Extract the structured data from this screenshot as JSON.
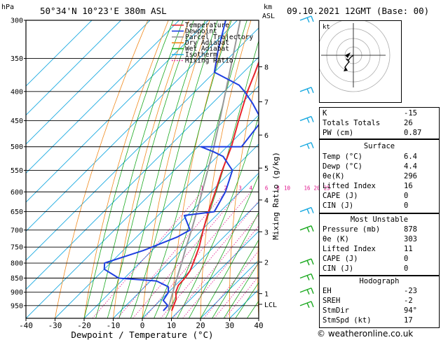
{
  "header": {
    "location": "50°34'N  10°23'E  380m  ASL",
    "pressure_unit": "hPa",
    "height_unit_km": "km",
    "height_unit_asl": "ASL",
    "datetime": "09.10.2021  12GMT  (Base: 00)"
  },
  "legend": [
    {
      "label": "Temperature",
      "color": "#e8232a"
    },
    {
      "label": "Dewpoint",
      "color": "#1f3fe0"
    },
    {
      "label": "Parcel Trajectory",
      "color": "#999999"
    },
    {
      "label": "Dry Adiabat",
      "color": "#f08a1e"
    },
    {
      "label": "Wet Adiabat",
      "color": "#19a81e"
    },
    {
      "label": "Isotherm",
      "color": "#19a9e0"
    },
    {
      "label": "Mixing Ratio",
      "color": "#e0138c"
    }
  ],
  "chart_data": {
    "type": "skew-t",
    "xlabel": "Dewpoint / Temperature (°C)",
    "ylabel_right": "Mixing Ratio (g/kg)",
    "x_ticks": [
      -40,
      -30,
      -20,
      -10,
      0,
      10,
      20,
      30,
      40
    ],
    "pressure_levels": [
      300,
      350,
      400,
      450,
      500,
      550,
      600,
      650,
      700,
      750,
      800,
      850,
      900,
      950
    ],
    "pressure_range": [
      300,
      1000
    ],
    "temp_range_at_bottom": [
      -40,
      40
    ],
    "height_km_labels": [
      {
        "label": "8",
        "p": 362
      },
      {
        "label": "7",
        "p": 417
      },
      {
        "label": "6",
        "p": 477
      },
      {
        "label": "5",
        "p": 545
      },
      {
        "label": "4",
        "p": 620
      },
      {
        "label": "3",
        "p": 705
      },
      {
        "label": "2",
        "p": 797
      },
      {
        "label": "1",
        "p": 905
      },
      {
        "label": "LCL",
        "p": 945
      }
    ],
    "mixing_ratio_labels": [
      "1",
      "2",
      "3",
      "4",
      "6",
      "8",
      "10",
      "16",
      "20",
      "25"
    ],
    "mixing_ratio_values": [
      1,
      2,
      3,
      4,
      6,
      8,
      10,
      16,
      20,
      25
    ],
    "temperature": [
      {
        "p": 970,
        "t": 7.5
      },
      {
        "p": 950,
        "t": 6.4
      },
      {
        "p": 925,
        "t": 5.0
      },
      {
        "p": 900,
        "t": 2.5
      },
      {
        "p": 875,
        "t": 1.0
      },
      {
        "p": 850,
        "t": 0.8
      },
      {
        "p": 825,
        "t": 0.0
      },
      {
        "p": 800,
        "t": -1.5
      },
      {
        "p": 750,
        "t": -5.0
      },
      {
        "p": 700,
        "t": -9.5
      },
      {
        "p": 650,
        "t": -14.0
      },
      {
        "p": 600,
        "t": -18.5
      },
      {
        "p": 550,
        "t": -23.5
      },
      {
        "p": 500,
        "t": -28.5
      },
      {
        "p": 450,
        "t": -35.0
      },
      {
        "p": 400,
        "t": -42.0
      },
      {
        "p": 370,
        "t": -46.0
      },
      {
        "p": 350,
        "t": -49.0
      },
      {
        "p": 300,
        "t": -56.0
      }
    ],
    "dewpoint": [
      {
        "p": 970,
        "t": 4.6
      },
      {
        "p": 950,
        "t": 4.4
      },
      {
        "p": 930,
        "t": 1.0
      },
      {
        "p": 900,
        "t": 0.0
      },
      {
        "p": 880,
        "t": -2.0
      },
      {
        "p": 860,
        "t": -8.0
      },
      {
        "p": 850,
        "t": -22.0
      },
      {
        "p": 820,
        "t": -30.0
      },
      {
        "p": 800,
        "t": -32.0
      },
      {
        "p": 760,
        "t": -23.0
      },
      {
        "p": 720,
        "t": -16.0
      },
      {
        "p": 700,
        "t": -14.0
      },
      {
        "p": 660,
        "t": -21.0
      },
      {
        "p": 650,
        "t": -12.0
      },
      {
        "p": 600,
        "t": -15.0
      },
      {
        "p": 550,
        "t": -20.0
      },
      {
        "p": 520,
        "t": -28.0
      },
      {
        "p": 510,
        "t": -33.0
      },
      {
        "p": 500,
        "t": -39.0
      },
      {
        "p": 500,
        "t": -25.0
      },
      {
        "p": 450,
        "t": -27.0
      },
      {
        "p": 420,
        "t": -36.0
      },
      {
        "p": 400,
        "t": -43.0
      },
      {
        "p": 390,
        "t": -47.0
      },
      {
        "p": 370,
        "t": -60.0
      },
      {
        "p": 340,
        "t": -66.0
      },
      {
        "p": 300,
        "t": -74.0
      }
    ],
    "parcel": [
      {
        "p": 970,
        "t": 6.5
      },
      {
        "p": 950,
        "t": 4.8
      },
      {
        "p": 900,
        "t": 1.5
      },
      {
        "p": 850,
        "t": -2.0
      },
      {
        "p": 800,
        "t": -5.5
      },
      {
        "p": 750,
        "t": -9.5
      },
      {
        "p": 700,
        "t": -13.5
      },
      {
        "p": 650,
        "t": -18.0
      },
      {
        "p": 600,
        "t": -23.0
      },
      {
        "p": 550,
        "t": -28.5
      },
      {
        "p": 500,
        "t": -34.5
      },
      {
        "p": 450,
        "t": -41.5
      },
      {
        "p": 400,
        "t": -49.5
      },
      {
        "p": 350,
        "t": -58.5
      },
      {
        "p": 300,
        "t": -69.0
      }
    ],
    "wind_barb_pressures": [
      300,
      400,
      450,
      500,
      650,
      700,
      800,
      850,
      900,
      950
    ]
  },
  "indices": {
    "k": {
      "label": "K",
      "value": "-15"
    },
    "tt": {
      "label": "Totals Totals",
      "value": "26"
    },
    "pw": {
      "label": "PW (cm)",
      "value": "0.87"
    }
  },
  "surface": {
    "title": "Surface",
    "rows": [
      {
        "label": "Temp (°C)",
        "value": "6.4"
      },
      {
        "label": "Dewp (°C)",
        "value": "4.4"
      },
      {
        "label": "θe(K)",
        "value": "296"
      },
      {
        "label": "Lifted Index",
        "value": "16"
      },
      {
        "label": "CAPE (J)",
        "value": "0"
      },
      {
        "label": "CIN (J)",
        "value": "0"
      }
    ]
  },
  "most_unstable": {
    "title": "Most Unstable",
    "rows": [
      {
        "label": "Pressure (mb)",
        "value": "878"
      },
      {
        "label": "θe (K)",
        "value": "303"
      },
      {
        "label": "Lifted Index",
        "value": "11"
      },
      {
        "label": "CAPE (J)",
        "value": "0"
      },
      {
        "label": "CIN (J)",
        "value": "0"
      }
    ]
  },
  "hodograph": {
    "title": "Hodograph",
    "label": "kt",
    "rows": [
      {
        "label": "EH",
        "value": "-23"
      },
      {
        "label": "SREH",
        "value": "-2"
      },
      {
        "label": "StmDir",
        "value": "94°"
      },
      {
        "label": "StmSpd (kt)",
        "value": "17"
      }
    ]
  },
  "credit": "© weatheronline.co.uk"
}
